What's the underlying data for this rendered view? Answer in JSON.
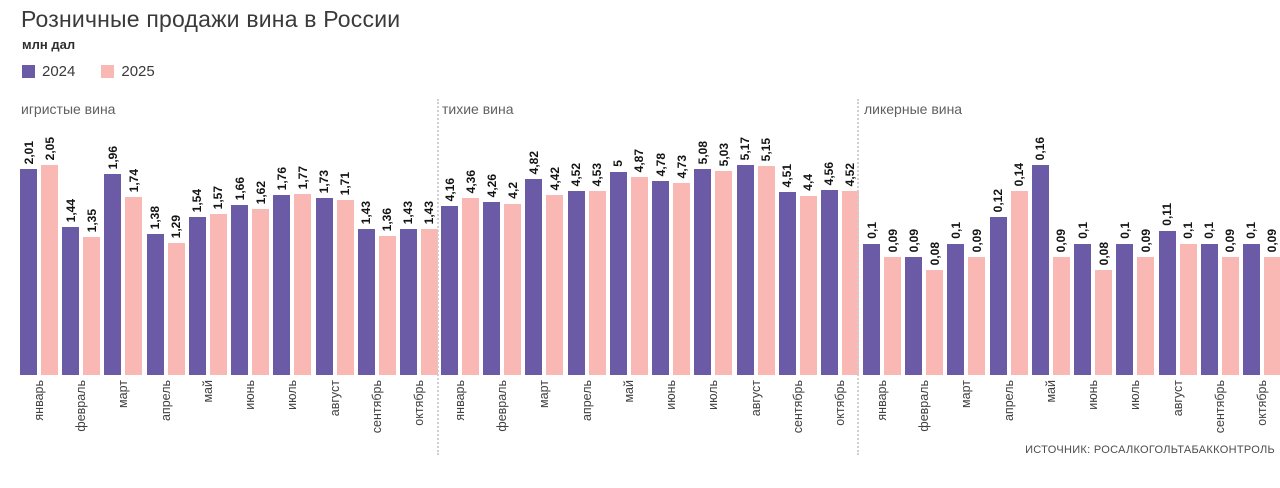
{
  "chart_data": {
    "type": "bar",
    "title": "Розничные продажи вина в России",
    "unit_label": "млн дал",
    "source": "ИСТОЧНИК: РОСАЛКОГОЛЬТАБАККОНТРОЛЬ",
    "legend": [
      {
        "name": "2024",
        "color": "#6b5ba7"
      },
      {
        "name": "2025",
        "color": "#f9b8b4"
      }
    ],
    "categories": [
      "январь",
      "февраль",
      "март",
      "апрель",
      "май",
      "июнь",
      "июль",
      "август",
      "сентябрь",
      "октябрь"
    ],
    "layout": {
      "grid": "off",
      "legend_position": "top-left",
      "bar_value_labels": "rotated-90",
      "panels_share_baseline": true,
      "each_panel_own_scale": true
    },
    "panels": [
      {
        "title": "игристые вина",
        "series": [
          {
            "name": "2024",
            "values": [
              "2,01",
              "1,44",
              "1,96",
              "1,38",
              "1,54",
              "1,66",
              "1,76",
              "1,73",
              "1,43",
              "1,43"
            ]
          },
          {
            "name": "2025",
            "values": [
              "2,05",
              "1,35",
              "1,74",
              "1,29",
              "1,57",
              "1,62",
              "1,77",
              "1,71",
              "1,36",
              "1,43"
            ]
          }
        ]
      },
      {
        "title": "тихие вина",
        "series": [
          {
            "name": "2024",
            "values": [
              "4,16",
              "4,26",
              "4,82",
              "4,52",
              "5",
              "4,78",
              "5,08",
              "5,17",
              "4,51",
              "4,56"
            ]
          },
          {
            "name": "2025",
            "values": [
              "4,36",
              "4,2",
              "4,42",
              "4,53",
              "4,87",
              "4,73",
              "5,03",
              "5,15",
              "4,4",
              "4,52"
            ]
          }
        ]
      },
      {
        "title": "ликерные вина",
        "series": [
          {
            "name": "2024",
            "values": [
              "0,1",
              "0,09",
              "0,1",
              "0,12",
              "0,16",
              "0,1",
              "0,1",
              "0,11",
              "0,1",
              "0,1"
            ]
          },
          {
            "name": "2025",
            "values": [
              "0,09",
              "0,08",
              "0,09",
              "0,14",
              "0,09",
              "0,08",
              "0,09",
              "0,1",
              "0,09",
              "0,09"
            ]
          }
        ]
      }
    ]
  }
}
